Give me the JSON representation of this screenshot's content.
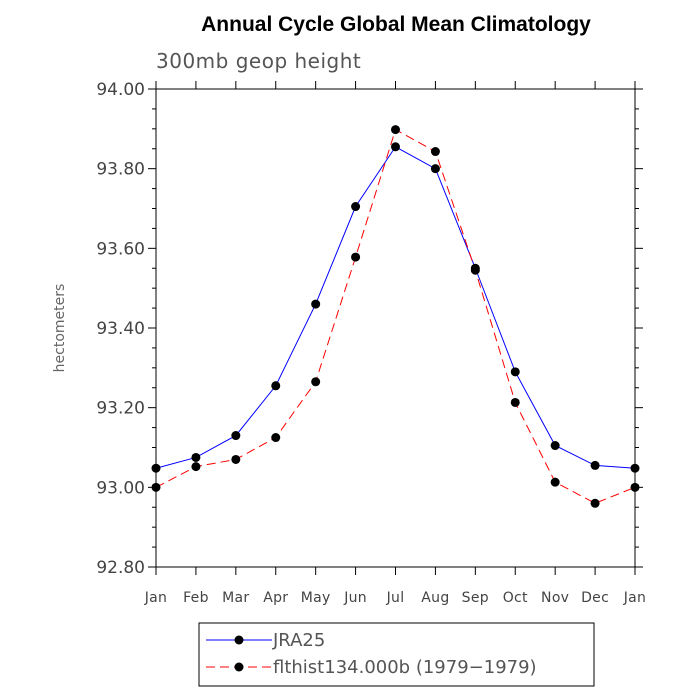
{
  "chart_data": {
    "type": "line",
    "title": "Annual Cycle Global Mean Climatology",
    "subtitle": "300mb geop height",
    "ylabel": "hectometers",
    "xlabel": "",
    "categories": [
      "Jan",
      "Feb",
      "Mar",
      "Apr",
      "May",
      "Jun",
      "Jul",
      "Aug",
      "Sep",
      "Oct",
      "Nov",
      "Dec",
      "Jan"
    ],
    "ylim": [
      92.8,
      94.0
    ],
    "yticks": [
      "92.80",
      "93.00",
      "93.20",
      "93.40",
      "93.60",
      "93.80",
      "94.00"
    ],
    "series": [
      {
        "name": "JRA25",
        "color": "#0000ff",
        "dash": "solid",
        "values": [
          93.048,
          93.075,
          93.13,
          93.255,
          93.46,
          93.705,
          93.855,
          93.8,
          93.55,
          93.29,
          93.105,
          93.055,
          93.048
        ]
      },
      {
        "name": "flthist134.000b (1979-1979)",
        "color": "#ff0000",
        "dash": "dashed",
        "values": [
          93.0,
          93.052,
          93.07,
          93.125,
          93.265,
          93.578,
          93.898,
          93.843,
          93.545,
          93.213,
          93.013,
          92.96,
          93.0
        ]
      }
    ],
    "legend": {
      "position": "bottom",
      "entries": [
        "JRA25",
        "flthist134.000b (1979−1979)"
      ]
    }
  }
}
